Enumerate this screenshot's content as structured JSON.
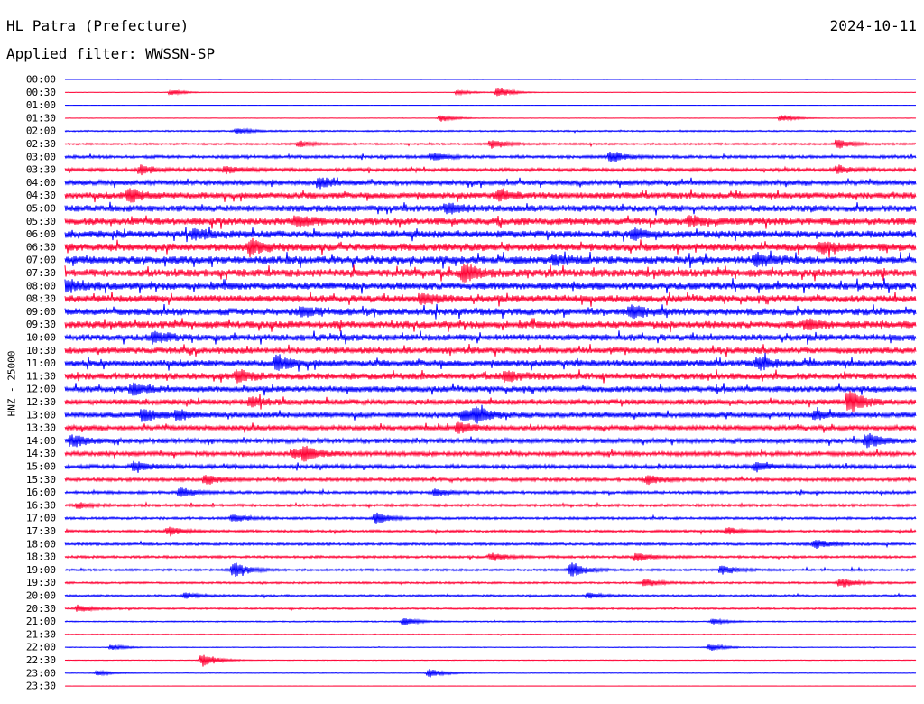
{
  "header": {
    "station": "HL Patra (Prefecture)",
    "date": "2024-10-11",
    "filter": "Applied filter: WWSSN-SP"
  },
  "chart_data": {
    "type": "line",
    "ylabel": "HNZ - 25000",
    "colors": [
      "#0000ff",
      "#ff0033"
    ],
    "time_labels": [
      "00:00",
      "00:30",
      "01:00",
      "01:30",
      "02:00",
      "02:30",
      "03:00",
      "03:30",
      "04:00",
      "04:30",
      "05:00",
      "05:30",
      "06:00",
      "06:30",
      "07:00",
      "07:30",
      "08:00",
      "08:30",
      "09:00",
      "09:30",
      "10:00",
      "10:30",
      "11:00",
      "11:30",
      "12:00",
      "12:30",
      "13:00",
      "13:30",
      "14:00",
      "14:30",
      "15:00",
      "15:30",
      "16:00",
      "16:30",
      "17:00",
      "17:30",
      "18:00",
      "18:30",
      "19:00",
      "19:30",
      "20:00",
      "20:30",
      "21:00",
      "21:30",
      "22:00",
      "22:30",
      "23:00",
      "23:30"
    ],
    "noise_level": [
      0.05,
      0.15,
      0.05,
      0.2,
      0.6,
      0.8,
      1.2,
      1.4,
      2.0,
      2.6,
      2.8,
      3.0,
      3.0,
      3.2,
      3.3,
      3.3,
      3.1,
      3.0,
      3.0,
      3.0,
      2.8,
      2.6,
      2.8,
      2.8,
      2.5,
      2.3,
      2.2,
      2.0,
      2.0,
      1.8,
      1.6,
      1.4,
      1.2,
      1.1,
      1.0,
      1.0,
      1.0,
      1.0,
      0.9,
      0.8,
      0.8,
      0.7,
      0.5,
      0.4,
      0.3,
      0.3,
      0.25,
      0.05
    ],
    "events": [
      {
        "row": 1,
        "minute": 15.3,
        "amp": 6
      },
      {
        "row": 1,
        "minute": 3.8,
        "amp": 3
      },
      {
        "row": 1,
        "minute": 13.9,
        "amp": 3
      },
      {
        "row": 3,
        "minute": 13.3,
        "amp": 4
      },
      {
        "row": 3,
        "minute": 25.3,
        "amp": 4
      },
      {
        "row": 4,
        "minute": 6.1,
        "amp": 3
      },
      {
        "row": 5,
        "minute": 8.3,
        "amp": 3
      },
      {
        "row": 5,
        "minute": 15.1,
        "amp": 5
      },
      {
        "row": 5,
        "minute": 27.3,
        "amp": 5
      },
      {
        "row": 6,
        "minute": 13.0,
        "amp": 4
      },
      {
        "row": 6,
        "minute": 19.3,
        "amp": 6
      },
      {
        "row": 7,
        "minute": 2.7,
        "amp": 5
      },
      {
        "row": 7,
        "minute": 5.7,
        "amp": 4
      },
      {
        "row": 7,
        "minute": 27.3,
        "amp": 4
      },
      {
        "row": 8,
        "minute": 9.0,
        "amp": 5
      },
      {
        "row": 9,
        "minute": 2.3,
        "amp": 7
      },
      {
        "row": 9,
        "minute": 15.3,
        "amp": 5
      },
      {
        "row": 10,
        "minute": 13.5,
        "amp": 5
      },
      {
        "row": 11,
        "minute": 8.2,
        "amp": 5
      },
      {
        "row": 11,
        "minute": 22.1,
        "amp": 5
      },
      {
        "row": 12,
        "minute": 4.6,
        "amp": 5
      },
      {
        "row": 12,
        "minute": 20.1,
        "amp": 5
      },
      {
        "row": 13,
        "minute": 6.6,
        "amp": 7
      },
      {
        "row": 13,
        "minute": 26.7,
        "amp": 6
      },
      {
        "row": 14,
        "minute": 17.3,
        "amp": 5
      },
      {
        "row": 14,
        "minute": 24.4,
        "amp": 6
      },
      {
        "row": 15,
        "minute": 14.1,
        "amp": 9
      },
      {
        "row": 16,
        "minute": 0.1,
        "amp": 6
      },
      {
        "row": 17,
        "minute": 12.6,
        "amp": 5
      },
      {
        "row": 18,
        "minute": 8.4,
        "amp": 4
      },
      {
        "row": 18,
        "minute": 20.0,
        "amp": 6
      },
      {
        "row": 19,
        "minute": 26.2,
        "amp": 5
      },
      {
        "row": 20,
        "minute": 3.2,
        "amp": 6
      },
      {
        "row": 22,
        "minute": 7.5,
        "amp": 8
      },
      {
        "row": 22,
        "minute": 24.5,
        "amp": 6
      },
      {
        "row": 23,
        "minute": 6.1,
        "amp": 6
      },
      {
        "row": 23,
        "minute": 15.6,
        "amp": 5
      },
      {
        "row": 24,
        "minute": 2.4,
        "amp": 6
      },
      {
        "row": 25,
        "minute": 27.7,
        "amp": 12
      },
      {
        "row": 25,
        "minute": 6.6,
        "amp": 5
      },
      {
        "row": 26,
        "minute": 2.8,
        "amp": 7
      },
      {
        "row": 26,
        "minute": 4.0,
        "amp": 5
      },
      {
        "row": 26,
        "minute": 14.1,
        "amp": 6
      },
      {
        "row": 26,
        "minute": 14.5,
        "amp": 7
      },
      {
        "row": 26,
        "minute": 26.5,
        "amp": 5
      },
      {
        "row": 27,
        "minute": 13.9,
        "amp": 6
      },
      {
        "row": 28,
        "minute": 0.3,
        "amp": 6
      },
      {
        "row": 28,
        "minute": 28.3,
        "amp": 8
      },
      {
        "row": 29,
        "minute": 8.5,
        "amp": 6
      },
      {
        "row": 29,
        "minute": 8.1,
        "amp": 5
      },
      {
        "row": 30,
        "minute": 2.5,
        "amp": 6
      },
      {
        "row": 30,
        "minute": 24.4,
        "amp": 5
      },
      {
        "row": 31,
        "minute": 5.0,
        "amp": 5
      },
      {
        "row": 31,
        "minute": 20.6,
        "amp": 5
      },
      {
        "row": 32,
        "minute": 4.1,
        "amp": 5
      },
      {
        "row": 32,
        "minute": 13.1,
        "amp": 4
      },
      {
        "row": 33,
        "minute": 0.5,
        "amp": 3
      },
      {
        "row": 34,
        "minute": 11.0,
        "amp": 6
      },
      {
        "row": 34,
        "minute": 6.0,
        "amp": 4
      },
      {
        "row": 35,
        "minute": 3.7,
        "amp": 5
      },
      {
        "row": 35,
        "minute": 23.4,
        "amp": 4
      },
      {
        "row": 36,
        "minute": 26.5,
        "amp": 5
      },
      {
        "row": 37,
        "minute": 15.1,
        "amp": 4
      },
      {
        "row": 37,
        "minute": 20.2,
        "amp": 5
      },
      {
        "row": 38,
        "minute": 6.0,
        "amp": 8
      },
      {
        "row": 38,
        "minute": 17.9,
        "amp": 8
      },
      {
        "row": 38,
        "minute": 23.2,
        "amp": 5
      },
      {
        "row": 39,
        "minute": 20.5,
        "amp": 4
      },
      {
        "row": 39,
        "minute": 27.4,
        "amp": 5
      },
      {
        "row": 40,
        "minute": 4.3,
        "amp": 3
      },
      {
        "row": 40,
        "minute": 18.5,
        "amp": 3
      },
      {
        "row": 41,
        "minute": 0.5,
        "amp": 4
      },
      {
        "row": 42,
        "minute": 12.0,
        "amp": 4
      },
      {
        "row": 42,
        "minute": 22.9,
        "amp": 3
      },
      {
        "row": 44,
        "minute": 1.7,
        "amp": 3
      },
      {
        "row": 44,
        "minute": 22.8,
        "amp": 4
      },
      {
        "row": 45,
        "minute": 4.9,
        "amp": 8
      },
      {
        "row": 46,
        "minute": 12.9,
        "amp": 5
      },
      {
        "row": 46,
        "minute": 1.2,
        "amp": 3
      }
    ]
  }
}
